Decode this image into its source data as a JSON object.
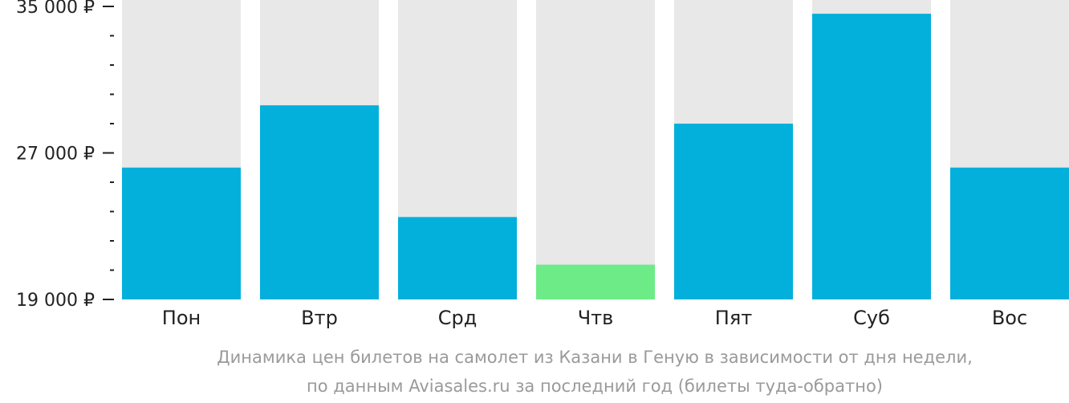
{
  "chart_data": {
    "type": "bar",
    "categories": [
      "Пон",
      "Втр",
      "Срд",
      "Чтв",
      "Пят",
      "Суб",
      "Вос"
    ],
    "values": [
      26200,
      29600,
      23500,
      20900,
      28600,
      34600,
      26200
    ],
    "ylim": [
      19000,
      35000
    ],
    "yticks": [
      {
        "value": 35000,
        "label": "35 000 ₽"
      },
      {
        "value": 27000,
        "label": "27 000 ₽"
      },
      {
        "value": 19000,
        "label": "19 000 ₽"
      }
    ],
    "minor_tick_step": 1600,
    "bar_color": "#03b0dc",
    "lowest_bar_color": "#6deb87",
    "background_bar_color": "#e8e8e8",
    "caption_line1": "Динамика цен билетов на самолет из Казани в Геную в зависимости от дня недели,",
    "caption_line2": "по данным Aviasales.ru за последний год (билеты туда-обратно)",
    "grid": false,
    "legend": "none"
  }
}
